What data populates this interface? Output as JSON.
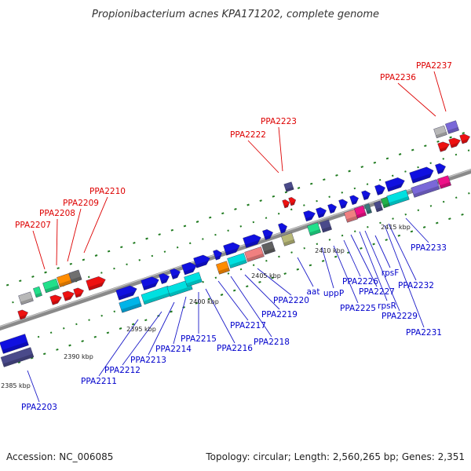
{
  "title": "Propionibacterium acnes KPA171202, complete genome",
  "footer": {
    "accession": "Accession: NC_006085",
    "summary": "Topology: circular; Length: 2,560,265 bp; Genes: 2,351"
  },
  "colors": {
    "backbone": "#8a8a8a",
    "tick": "#1f7a1f",
    "label_red": "#dd0000",
    "label_blue": "#0000cc",
    "leader_red": "#dd0000",
    "leader_blue": "#1a1ac8"
  },
  "scale_labels": [
    "2385 kbp",
    "2390 kbp",
    "2395 kbp",
    "2400 kbp",
    "2405 kbp",
    "2410 kbp",
    "2415 kbp"
  ],
  "red_labels": [
    "PPA2207",
    "PPA2208",
    "PPA2209",
    "PPA2210",
    "PPA2222",
    "PPA2223",
    "PPA2236",
    "PPA2237"
  ],
  "blue_labels": [
    "PPA2203",
    "PPA2211",
    "PPA2212",
    "PPA2213",
    "PPA2214",
    "PPA2215",
    "PPA2216",
    "PPA2217",
    "PPA2218",
    "PPA2219",
    "PPA2220",
    "aat",
    "uppP",
    "PPA2225",
    "PPA2226",
    "PPA2227",
    "rpsR",
    "rpsF",
    "PPA2229",
    "PPA2231",
    "PPA2232",
    "PPA2233"
  ]
}
